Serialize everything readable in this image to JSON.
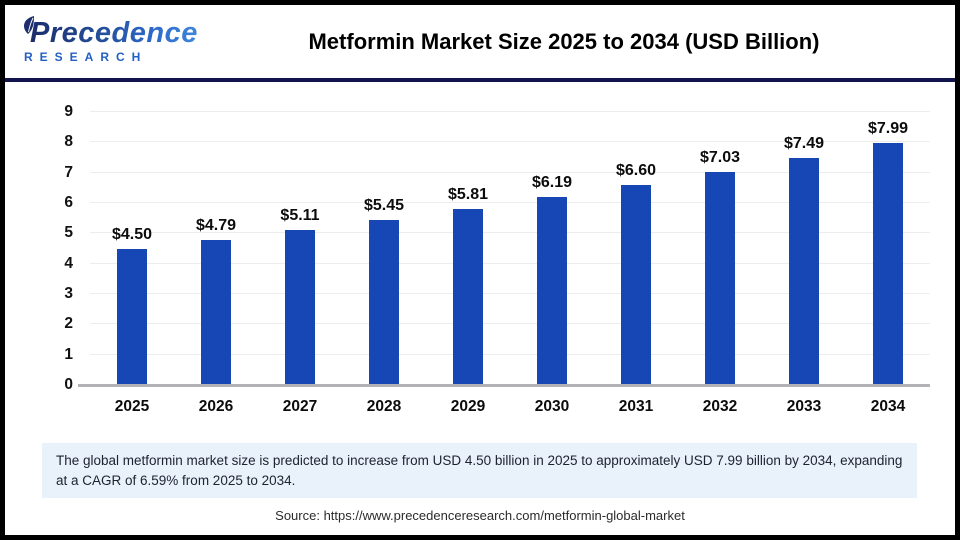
{
  "header": {
    "logo": {
      "wordmark": "Precedence",
      "subtext": "RESEARCH",
      "leaf_icon": "leaf",
      "brand_navy": "#1b2d6b",
      "brand_blue": "#2e6bcc"
    },
    "title": "Metformin Market Size 2025 to 2034 (USD Billion)"
  },
  "chart_data": {
    "type": "bar",
    "title": "Metformin Market Size 2025 to 2034 (USD Billion)",
    "categories": [
      "2025",
      "2026",
      "2027",
      "2028",
      "2029",
      "2030",
      "2031",
      "2032",
      "2033",
      "2034"
    ],
    "values": [
      4.5,
      4.79,
      5.11,
      5.45,
      5.81,
      6.19,
      6.6,
      7.03,
      7.49,
      7.99
    ],
    "labels": [
      "$4.50",
      "$4.79",
      "$5.11",
      "$5.45",
      "$5.81",
      "$6.19",
      "$6.60",
      "$7.03",
      "$7.49",
      "$7.99"
    ],
    "xlabel": "",
    "ylabel": "",
    "ylim": [
      0,
      9
    ],
    "yticks": [
      0,
      1,
      2,
      3,
      4,
      5,
      6,
      7,
      8,
      9
    ],
    "grid": true,
    "legend_position": "none",
    "bar_color": "#1747b5",
    "gridline_color": "#ededed",
    "baseline_color": "#b3b3b6"
  },
  "summary": {
    "text": "The global metformin market size is predicted to increase from USD 4.50 billion in 2025 to approximately USD 7.99 billion by 2034, expanding at a CAGR of 6.59% from 2025 to 2034.",
    "background": "#e9f1fb"
  },
  "source": {
    "text": "Source: https://www.precedenceresearch.com/metformin-global-market"
  }
}
